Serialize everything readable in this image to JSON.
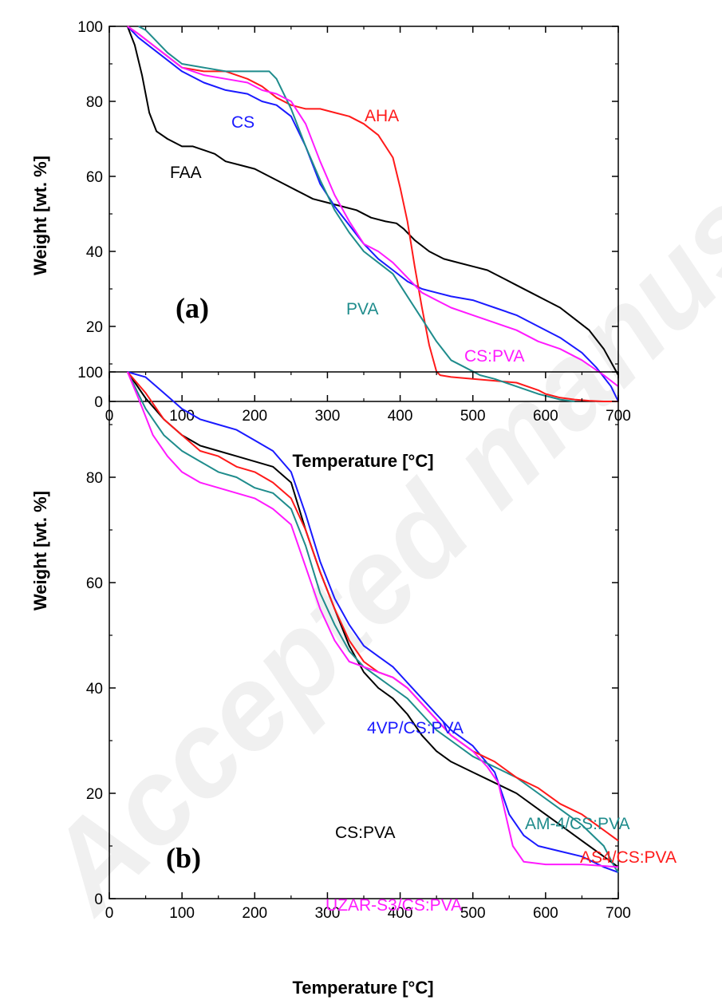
{
  "watermark": "Accepted manuscript",
  "chart_data": [
    {
      "type": "line",
      "panel_label": "(a)",
      "xlabel": "Temperature [°C]",
      "ylabel": "Weight  [wt. %]",
      "xlim": [
        0,
        700
      ],
      "ylim": [
        0,
        100
      ],
      "xticks": [
        0,
        100,
        200,
        300,
        400,
        500,
        600,
        700
      ],
      "yticks": [
        0,
        20,
        40,
        60,
        80,
        100
      ],
      "grid": false,
      "legend": "inline labels",
      "series": [
        {
          "name": "FAA",
          "color": "#000000",
          "x": [
            25,
            35,
            45,
            55,
            65,
            80,
            100,
            115,
            130,
            145,
            160,
            180,
            200,
            220,
            240,
            260,
            280,
            300,
            320,
            340,
            360,
            380,
            395,
            405,
            420,
            440,
            460,
            480,
            500,
            520,
            540,
            560,
            580,
            600,
            620,
            640,
            660,
            680,
            700
          ],
          "y": [
            100,
            95,
            87,
            77,
            72,
            70,
            68,
            68,
            67,
            66,
            64,
            63,
            62,
            60,
            58,
            56,
            54,
            53,
            52,
            51,
            49,
            48,
            47.5,
            46,
            43,
            40,
            38,
            37,
            36,
            35,
            33,
            31,
            29,
            27,
            25,
            22,
            19,
            14,
            7
          ]
        },
        {
          "name": "CS",
          "color": "#1a1aff",
          "x": [
            25,
            40,
            60,
            80,
            100,
            130,
            160,
            190,
            210,
            230,
            250,
            270,
            290,
            310,
            330,
            350,
            370,
            390,
            410,
            430,
            450,
            470,
            500,
            530,
            560,
            590,
            620,
            650,
            670,
            690,
            700
          ],
          "y": [
            100,
            97,
            94,
            91,
            88,
            85,
            83,
            82,
            80,
            79,
            76,
            68,
            58,
            52,
            47,
            42,
            38,
            35,
            32,
            30,
            29,
            28,
            27,
            25,
            23,
            20,
            17,
            13,
            9,
            4,
            0
          ]
        },
        {
          "name": "AHA",
          "color": "#ff1a1a",
          "x": [
            25,
            40,
            60,
            80,
            100,
            130,
            160,
            190,
            210,
            230,
            250,
            270,
            290,
            310,
            330,
            350,
            370,
            390,
            400,
            410,
            420,
            430,
            440,
            450,
            455,
            470,
            500,
            530,
            560,
            590,
            600,
            620,
            640,
            660,
            680,
            700
          ],
          "y": [
            100,
            98,
            95,
            92,
            89,
            88,
            88,
            86,
            84,
            81,
            79,
            78,
            78,
            77,
            76,
            74,
            71,
            65,
            57,
            48,
            36,
            25,
            15,
            8,
            7,
            6.5,
            6,
            5.5,
            5,
            3,
            2,
            1,
            0.5,
            0.2,
            0,
            0
          ]
        },
        {
          "name": "PVA",
          "color": "#1f8c8c",
          "x": [
            40,
            50,
            60,
            80,
            100,
            130,
            160,
            190,
            210,
            220,
            230,
            240,
            250,
            270,
            290,
            310,
            330,
            350,
            370,
            390,
            410,
            430,
            450,
            470,
            490,
            510,
            530,
            560,
            590,
            620,
            640
          ],
          "y": [
            100,
            99,
            97,
            93,
            90,
            89,
            88,
            88,
            88,
            88,
            86,
            82,
            78,
            68,
            59,
            51,
            45,
            40,
            37,
            34,
            28,
            22,
            16,
            11,
            9,
            7,
            6,
            4,
            2,
            0.5,
            0
          ]
        },
        {
          "name": "CS:PVA",
          "color": "#ff1aff",
          "x": [
            25,
            40,
            60,
            80,
            100,
            130,
            160,
            190,
            210,
            230,
            250,
            270,
            290,
            310,
            330,
            350,
            370,
            390,
            410,
            430,
            450,
            470,
            500,
            530,
            560,
            590,
            620,
            650,
            680,
            700
          ],
          "y": [
            100,
            98,
            95,
            92,
            89,
            87,
            86,
            85,
            83,
            82,
            80,
            74,
            64,
            55,
            48,
            42,
            40,
            37,
            33,
            29,
            27,
            25,
            23,
            21,
            19,
            16,
            14,
            11,
            7,
            4
          ]
        }
      ]
    },
    {
      "type": "line",
      "panel_label": "(b)",
      "xlabel": "Temperature [°C]",
      "ylabel": "Weight [wt. %]",
      "xlim": [
        0,
        700
      ],
      "ylim": [
        0,
        100
      ],
      "xticks": [
        0,
        100,
        200,
        300,
        400,
        500,
        600,
        700
      ],
      "yticks": [
        0,
        20,
        40,
        60,
        80,
        100
      ],
      "grid": false,
      "legend": "inline labels",
      "series": [
        {
          "name": "CS:PVA",
          "color": "#000000",
          "x": [
            25,
            50,
            75,
            100,
            125,
            150,
            175,
            200,
            225,
            250,
            270,
            290,
            310,
            330,
            350,
            370,
            390,
            410,
            430,
            450,
            470,
            500,
            530,
            560,
            590,
            620,
            650,
            680,
            700
          ],
          "y": [
            100,
            95,
            91,
            88,
            86,
            85,
            84,
            83,
            82,
            79,
            70,
            62,
            55,
            48,
            43,
            40,
            38,
            35,
            31,
            28,
            26,
            24,
            22,
            20,
            17,
            14,
            11,
            8,
            6
          ]
        },
        {
          "name": "4VP/CS:PVA",
          "color": "#1a1aff",
          "x": [
            25,
            50,
            75,
            100,
            125,
            150,
            175,
            200,
            225,
            250,
            270,
            290,
            310,
            330,
            350,
            370,
            390,
            410,
            430,
            450,
            470,
            500,
            530,
            550,
            570,
            590,
            620,
            650,
            680,
            700
          ],
          "y": [
            100,
            99,
            96,
            93,
            91,
            90,
            89,
            87,
            85,
            81,
            73,
            64,
            57,
            52,
            48,
            46,
            44,
            41,
            38,
            35,
            32,
            29,
            24,
            16,
            12,
            10,
            9,
            8,
            6,
            5
          ]
        },
        {
          "name": "AM-4/CS:PVA",
          "color": "#1f8c8c",
          "x": [
            25,
            50,
            75,
            100,
            125,
            150,
            175,
            200,
            225,
            250,
            270,
            290,
            310,
            330,
            350,
            370,
            390,
            410,
            430,
            450,
            470,
            500,
            530,
            560,
            590,
            620,
            650,
            680,
            695,
            700
          ],
          "y": [
            100,
            93,
            88,
            85,
            83,
            81,
            80,
            78,
            77,
            74,
            67,
            58,
            52,
            47,
            44,
            42,
            40,
            38,
            35,
            32,
            30,
            27,
            25,
            23,
            20,
            17,
            14,
            10,
            6,
            5
          ]
        },
        {
          "name": "AS4/CS:PVA",
          "color": "#ff1a1a",
          "x": [
            25,
            50,
            75,
            100,
            125,
            150,
            175,
            200,
            225,
            250,
            270,
            290,
            310,
            330,
            350,
            370,
            390,
            410,
            430,
            450,
            470,
            500,
            530,
            560,
            590,
            620,
            650,
            680,
            700
          ],
          "y": [
            100,
            96,
            91,
            88,
            85,
            84,
            82,
            81,
            79,
            76,
            70,
            62,
            55,
            49,
            45,
            43,
            42,
            40,
            37,
            34,
            31,
            28,
            26,
            23,
            21,
            18,
            16,
            13,
            11
          ]
        },
        {
          "name": "UZAR-S3/CS:PVA",
          "color": "#ff1aff",
          "x": [
            25,
            40,
            60,
            80,
            100,
            125,
            150,
            175,
            200,
            225,
            250,
            270,
            290,
            310,
            330,
            350,
            370,
            390,
            410,
            430,
            450,
            470,
            500,
            520,
            535,
            545,
            555,
            570,
            600,
            650,
            700
          ],
          "y": [
            100,
            95,
            88,
            84,
            81,
            79,
            78,
            77,
            76,
            74,
            71,
            63,
            55,
            49,
            45,
            44,
            43,
            42,
            40,
            37,
            34,
            31,
            28,
            25,
            22,
            16,
            10,
            7,
            6.5,
            6.5,
            6
          ]
        }
      ]
    }
  ]
}
